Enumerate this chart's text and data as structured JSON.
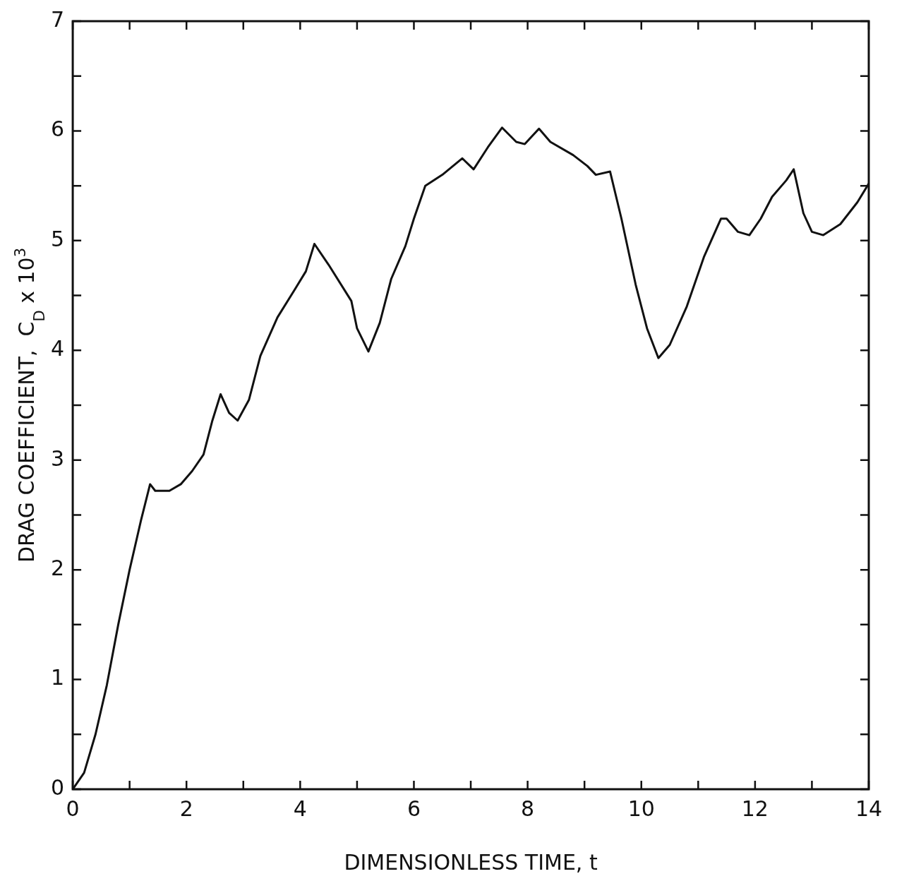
{
  "chart_data": {
    "type": "line",
    "xlabel": "DIMENSIONLESS TIME, t",
    "ylabel": "DRAG COEFFICIENT,  C$_{D}$ x 10$^{3}$",
    "x": [
      0,
      0.2,
      0.4,
      0.6,
      0.8,
      1.0,
      1.2,
      1.36,
      1.45,
      1.7,
      1.9,
      2.1,
      2.3,
      2.45,
      2.6,
      2.75,
      2.9,
      3.1,
      3.3,
      3.6,
      3.9,
      4.1,
      4.25,
      4.5,
      4.9,
      5.0,
      5.2,
      5.4,
      5.6,
      5.85,
      6.0,
      6.2,
      6.5,
      6.85,
      7.05,
      7.3,
      7.55,
      7.8,
      7.95,
      8.2,
      8.4,
      8.8,
      9.05,
      9.2,
      9.45,
      9.65,
      9.9,
      10.1,
      10.3,
      10.5,
      10.8,
      11.1,
      11.4,
      11.5,
      11.7,
      11.9,
      12.1,
      12.3,
      12.55,
      12.68,
      12.85,
      13.0,
      13.2,
      13.5,
      13.8,
      14.0
    ],
    "series": [
      {
        "color": "#111111",
        "values": [
          0,
          0.15,
          0.5,
          0.95,
          1.5,
          2.0,
          2.45,
          2.78,
          2.72,
          2.72,
          2.78,
          2.9,
          3.05,
          3.35,
          3.6,
          3.43,
          3.36,
          3.55,
          3.95,
          4.3,
          4.55,
          4.72,
          4.97,
          4.78,
          4.45,
          4.2,
          3.99,
          4.25,
          4.65,
          4.95,
          5.2,
          5.5,
          5.6,
          5.75,
          5.65,
          5.85,
          6.03,
          5.9,
          5.88,
          6.02,
          5.9,
          5.78,
          5.68,
          5.6,
          5.63,
          5.2,
          4.6,
          4.2,
          3.93,
          4.05,
          4.4,
          4.85,
          5.2,
          5.2,
          5.08,
          5.05,
          5.2,
          5.4,
          5.55,
          5.65,
          5.25,
          5.08,
          5.05,
          5.15,
          5.35,
          5.52
        ]
      }
    ],
    "xlim": [
      0,
      14
    ],
    "xticks": [
      0,
      {
        "value": 1,
        "label": null
      },
      2,
      {
        "value": 3,
        "label": null
      },
      4,
      {
        "value": 5,
        "label": null
      },
      6,
      {
        "value": 7,
        "label": null
      },
      8,
      {
        "value": 9,
        "label": null
      },
      10,
      {
        "value": 11,
        "label": null
      },
      12,
      {
        "value": 13,
        "label": null
      },
      14
    ],
    "ylim": [
      0,
      7
    ],
    "yticks": [
      0,
      {
        "value": 0.5,
        "label": null
      },
      1,
      {
        "value": 1.5,
        "label": null
      },
      2,
      {
        "value": 2.5,
        "label": null
      },
      3,
      {
        "value": 3.5,
        "label": null
      },
      4,
      {
        "value": 4.5,
        "label": null
      },
      5,
      {
        "value": 5.5,
        "label": null
      },
      6,
      {
        "value": 6.5,
        "label": null
      },
      7
    ],
    "marker": "none",
    "line_style": "solid",
    "legend": false
  }
}
